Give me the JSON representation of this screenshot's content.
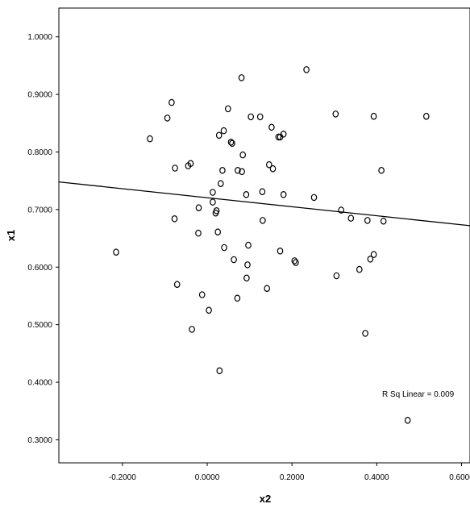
{
  "chart_data": {
    "type": "scatter",
    "title": "",
    "xlabel": "x2",
    "ylabel": "x1",
    "xlim": [
      -0.35,
      0.62
    ],
    "ylim": [
      0.26,
      1.05
    ],
    "x_ticks": [
      -0.2,
      0.0,
      0.2,
      0.4,
      0.6
    ],
    "x_tick_labels": [
      "-0.2000",
      "0.0000",
      "0.2000",
      "0.4000",
      "0.6000"
    ],
    "y_ticks": [
      0.3,
      0.4,
      0.5,
      0.6,
      0.7,
      0.8,
      0.9,
      1.0
    ],
    "y_tick_labels": [
      "0.3000",
      "0.4000",
      "0.5000",
      "0.6000",
      "0.7000",
      "0.8000",
      "0.9000",
      "1.0000"
    ],
    "grid": false,
    "fit_line": {
      "x": [
        -0.35,
        0.62
      ],
      "y": [
        0.748,
        0.672
      ]
    },
    "annotation": "R Sq Linear = 0.009",
    "points": [
      {
        "x": 0.081,
        "y": 0.929
      },
      {
        "x": 0.234,
        "y": 0.943
      },
      {
        "x": -0.084,
        "y": 0.886
      },
      {
        "x": -0.094,
        "y": 0.859
      },
      {
        "x": 0.049,
        "y": 0.875
      },
      {
        "x": 0.103,
        "y": 0.861
      },
      {
        "x": 0.125,
        "y": 0.861
      },
      {
        "x": 0.303,
        "y": 0.866
      },
      {
        "x": 0.393,
        "y": 0.862
      },
      {
        "x": 0.517,
        "y": 0.862
      },
      {
        "x": 0.039,
        "y": 0.837
      },
      {
        "x": 0.028,
        "y": 0.829
      },
      {
        "x": 0.152,
        "y": 0.843
      },
      {
        "x": 0.056,
        "y": 0.817
      },
      {
        "x": 0.059,
        "y": 0.815
      },
      {
        "x": 0.172,
        "y": 0.826
      },
      {
        "x": 0.18,
        "y": 0.831
      },
      {
        "x": 0.168,
        "y": 0.826
      },
      {
        "x": -0.135,
        "y": 0.823
      },
      {
        "x": 0.084,
        "y": 0.795
      },
      {
        "x": -0.076,
        "y": 0.772
      },
      {
        "x": -0.045,
        "y": 0.776
      },
      {
        "x": -0.039,
        "y": 0.78
      },
      {
        "x": 0.036,
        "y": 0.768
      },
      {
        "x": 0.072,
        "y": 0.768
      },
      {
        "x": 0.082,
        "y": 0.766
      },
      {
        "x": 0.146,
        "y": 0.778
      },
      {
        "x": 0.155,
        "y": 0.771
      },
      {
        "x": 0.411,
        "y": 0.768
      },
      {
        "x": 0.032,
        "y": 0.745
      },
      {
        "x": 0.013,
        "y": 0.73
      },
      {
        "x": 0.13,
        "y": 0.731
      },
      {
        "x": 0.092,
        "y": 0.726
      },
      {
        "x": 0.18,
        "y": 0.726
      },
      {
        "x": 0.252,
        "y": 0.721
      },
      {
        "x": 0.013,
        "y": 0.713
      },
      {
        "x": -0.02,
        "y": 0.703
      },
      {
        "x": 0.022,
        "y": 0.698
      },
      {
        "x": 0.02,
        "y": 0.694
      },
      {
        "x": 0.316,
        "y": 0.699
      },
      {
        "x": -0.077,
        "y": 0.684
      },
      {
        "x": 0.131,
        "y": 0.681
      },
      {
        "x": 0.339,
        "y": 0.685
      },
      {
        "x": 0.378,
        "y": 0.681
      },
      {
        "x": 0.416,
        "y": 0.68
      },
      {
        "x": -0.215,
        "y": 0.626
      },
      {
        "x": -0.021,
        "y": 0.659
      },
      {
        "x": 0.025,
        "y": 0.661
      },
      {
        "x": 0.04,
        "y": 0.634
      },
      {
        "x": 0.097,
        "y": 0.638
      },
      {
        "x": 0.172,
        "y": 0.628
      },
      {
        "x": 0.063,
        "y": 0.613
      },
      {
        "x": 0.095,
        "y": 0.604
      },
      {
        "x": 0.206,
        "y": 0.611
      },
      {
        "x": 0.209,
        "y": 0.608
      },
      {
        "x": 0.393,
        "y": 0.622
      },
      {
        "x": 0.385,
        "y": 0.614
      },
      {
        "x": 0.359,
        "y": 0.596
      },
      {
        "x": 0.305,
        "y": 0.585
      },
      {
        "x": 0.093,
        "y": 0.581
      },
      {
        "x": -0.071,
        "y": 0.57
      },
      {
        "x": 0.141,
        "y": 0.563
      },
      {
        "x": -0.012,
        "y": 0.552
      },
      {
        "x": 0.071,
        "y": 0.546
      },
      {
        "x": 0.004,
        "y": 0.525
      },
      {
        "x": -0.036,
        "y": 0.492
      },
      {
        "x": 0.373,
        "y": 0.485
      },
      {
        "x": 0.029,
        "y": 0.42
      },
      {
        "x": 0.473,
        "y": 0.334
      }
    ]
  }
}
